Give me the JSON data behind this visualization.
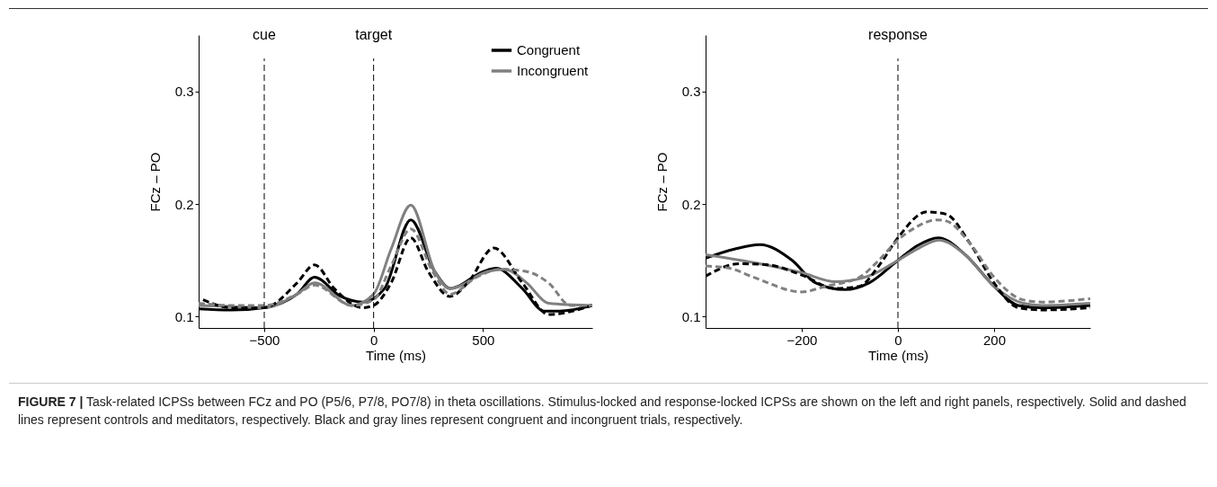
{
  "chart_data": [
    {
      "type": "line",
      "xlabel": "Time (ms)",
      "ylabel": "FCz – PO",
      "xlim": [
        -800,
        1000
      ],
      "xticks": [
        -500,
        0,
        500
      ],
      "ylim": [
        0.09,
        0.35
      ],
      "yticks": [
        0.1,
        0.2,
        0.3
      ],
      "grid": false,
      "legend": "top right",
      "marker": "none",
      "ref_lines": [
        {
          "axis": "x",
          "value": -500,
          "label": "cue",
          "line_style": "dashed",
          "color": "#000000"
        },
        {
          "axis": "x",
          "value": 0,
          "label": "target",
          "line_style": "dashed",
          "color": "#000000"
        }
      ],
      "annotations": [
        "FIGURE 7 | Task-related ICPSs between FCz and PO (P5/6, P7/8, PO7/8) in theta oscillations. Stimulus-locked and response-locked ICPSs are shown on the left and right panels, respectively. Solid and dashed lines represent controls and meditators, respectively. Black and gray lines represent congruent and incongruent trials, respectively."
      ],
      "series": [
        {
          "name": "Congruent",
          "color": "#000000",
          "line_style": "solid",
          "x": [
            -800,
            -650,
            -500,
            -350,
            -270,
            -150,
            -50,
            50,
            170,
            280,
            350,
            500,
            560,
            680,
            780,
            850,
            1000
          ],
          "values": [
            0.107,
            0.106,
            0.108,
            0.12,
            0.135,
            0.118,
            0.113,
            0.125,
            0.186,
            0.14,
            0.125,
            0.14,
            0.143,
            0.125,
            0.105,
            0.105,
            0.11
          ]
        },
        {
          "name": "Incongruent",
          "color": "#808080",
          "line_style": "solid",
          "x": [
            -800,
            -650,
            -500,
            -350,
            -270,
            -100,
            0,
            80,
            170,
            280,
            350,
            520,
            600,
            700,
            800,
            1000
          ],
          "values": [
            0.11,
            0.109,
            0.108,
            0.12,
            0.13,
            0.11,
            0.12,
            0.16,
            0.199,
            0.14,
            0.125,
            0.14,
            0.142,
            0.13,
            0.112,
            0.11
          ]
        },
        {
          "color": "#000000",
          "line_style": "dashed",
          "x": [
            -780,
            -650,
            -500,
            -350,
            -270,
            -180,
            -50,
            0,
            80,
            170,
            250,
            350,
            430,
            550,
            680,
            800,
            1000
          ],
          "values": [
            0.115,
            0.108,
            0.108,
            0.13,
            0.146,
            0.125,
            0.108,
            0.11,
            0.13,
            0.17,
            0.14,
            0.118,
            0.13,
            0.161,
            0.13,
            0.102,
            0.11
          ]
        },
        {
          "color": "#808080",
          "line_style": "dashed",
          "x": [
            -800,
            -650,
            -500,
            -350,
            -270,
            -100,
            0,
            80,
            170,
            270,
            350,
            470,
            580,
            700,
            800,
            900,
            1000
          ],
          "values": [
            0.112,
            0.11,
            0.11,
            0.12,
            0.128,
            0.11,
            0.115,
            0.145,
            0.178,
            0.14,
            0.12,
            0.135,
            0.142,
            0.14,
            0.13,
            0.11,
            0.11
          ]
        }
      ]
    },
    {
      "type": "line",
      "xlabel": "Time (ms)",
      "ylabel": "FCz – PO",
      "xlim": [
        -400,
        400
      ],
      "xticks": [
        -200,
        0,
        200
      ],
      "ylim": [
        0.09,
        0.35
      ],
      "yticks": [
        0.1,
        0.2,
        0.3
      ],
      "grid": false,
      "marker": "none",
      "ref_lines": [
        {
          "axis": "x",
          "value": 0,
          "label": "response",
          "line_style": "dashed",
          "color": "#000000"
        }
      ],
      "series": [
        {
          "color": "#000000",
          "line_style": "solid",
          "x": [
            -400,
            -340,
            -287,
            -220,
            -171,
            -110,
            -60,
            0,
            40,
            84,
            140,
            200,
            250,
            300,
            400
          ],
          "values": [
            0.152,
            0.16,
            0.164,
            0.15,
            0.13,
            0.124,
            0.13,
            0.15,
            0.163,
            0.17,
            0.155,
            0.127,
            0.11,
            0.108,
            0.11
          ]
        },
        {
          "color": "#808080",
          "line_style": "solid",
          "x": [
            -400,
            -300,
            -200,
            -130,
            -100,
            -50,
            0,
            40,
            85,
            140,
            200,
            260,
            300,
            400
          ],
          "values": [
            0.155,
            0.148,
            0.139,
            0.131,
            0.132,
            0.138,
            0.15,
            0.16,
            0.168,
            0.155,
            0.127,
            0.112,
            0.11,
            0.112
          ]
        },
        {
          "color": "#000000",
          "line_style": "dashed",
          "x": [
            -400,
            -330,
            -270,
            -200,
            -130,
            -80,
            -40,
            0,
            60,
            100,
            150,
            200,
            250,
            300,
            400
          ],
          "values": [
            0.136,
            0.147,
            0.146,
            0.137,
            0.125,
            0.127,
            0.145,
            0.17,
            0.193,
            0.191,
            0.165,
            0.13,
            0.108,
            0.106,
            0.108
          ]
        },
        {
          "color": "#808080",
          "line_style": "dashed",
          "x": [
            -400,
            -350,
            -300,
            -200,
            -150,
            -80,
            -40,
            0,
            40,
            80,
            100,
            150,
            200,
            260,
            300,
            400
          ],
          "values": [
            0.145,
            0.143,
            0.135,
            0.122,
            0.127,
            0.135,
            0.15,
            0.168,
            0.18,
            0.186,
            0.185,
            0.165,
            0.135,
            0.115,
            0.113,
            0.116
          ]
        }
      ]
    }
  ]
}
